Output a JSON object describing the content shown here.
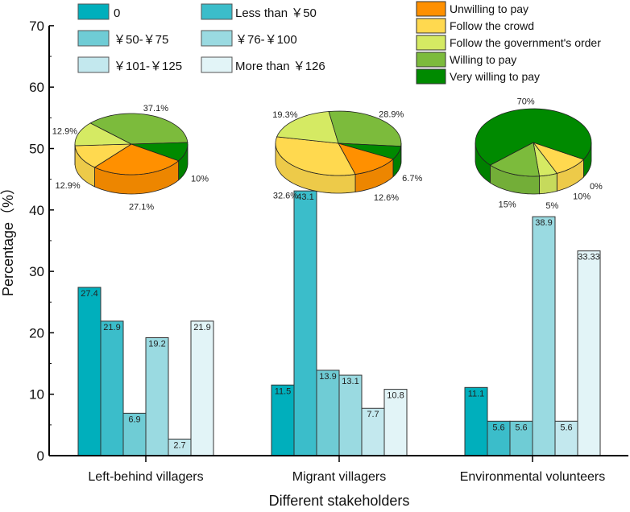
{
  "chart_data": [
    {
      "type": "bar",
      "title": "",
      "xlabel": "Different stakeholders",
      "ylabel": "Percentage（%）",
      "ylim": [
        0,
        70
      ],
      "yticks": [
        "0",
        "10",
        "20",
        "30",
        "40",
        "50",
        "60",
        "70"
      ],
      "categories": [
        "Left-behind villagers",
        "Migrant villagers",
        "Environmental volunteers"
      ],
      "legend_placement": "top-left",
      "series": [
        {
          "name": "0",
          "color": "#00AFBC",
          "values": [
            27.4,
            11.5,
            11.1
          ],
          "labels": [
            "27.4",
            "11.5",
            "11.1"
          ]
        },
        {
          "name": "Less than ￥50",
          "color": "#3BBDCA",
          "values": [
            21.9,
            43.1,
            5.6
          ],
          "labels": [
            "21.9",
            "43.1",
            "5.6"
          ]
        },
        {
          "name": "￥50-￥75",
          "color": "#6FCCD5",
          "values": [
            6.9,
            13.9,
            5.6
          ],
          "labels": [
            "6.9",
            "13.9",
            "5.6"
          ]
        },
        {
          "name": "￥76-￥100",
          "color": "#9ADAE1",
          "values": [
            19.2,
            13.1,
            38.9
          ],
          "labels": [
            "19.2",
            "13.1",
            "38.9"
          ]
        },
        {
          "name": "￥101-￥125",
          "color": "#C3E8EE",
          "values": [
            2.7,
            7.7,
            5.6
          ],
          "labels": [
            "2.7",
            "7.7",
            "5.6"
          ]
        },
        {
          "name": "More than ￥126",
          "color": "#E2F4F7",
          "values": [
            21.9,
            10.8,
            33.33
          ],
          "labels": [
            "21.9",
            "10.8",
            "33.33"
          ]
        }
      ]
    },
    {
      "type": "pie",
      "legend_placement": "top-right",
      "categories": [
        "Unwilling to pay",
        "Follow the crowd",
        "Follow the government's order",
        "Willing to pay",
        "Very willing to pay"
      ],
      "colors": [
        "#FF9000",
        "#FFD94F",
        "#D5EA63",
        "#7CBB3C",
        "#008A00"
      ],
      "pies": [
        {
          "name": "Left-behind villagers",
          "values": [
            27.1,
            12.9,
            12.9,
            37.1,
            10
          ],
          "labels": [
            "27.1%",
            "12.9%",
            "12.9%",
            "37.1%",
            "10%"
          ]
        },
        {
          "name": "Migrant villagers",
          "values": [
            12.6,
            32.6,
            19.3,
            28.9,
            6.7
          ],
          "labels": [
            "12.6%",
            "32.6%",
            "19.3%",
            "28.9%",
            "6.7%"
          ]
        },
        {
          "name": "Environmental volunteers",
          "values": [
            0,
            10,
            5,
            15,
            70
          ],
          "labels": [
            "0%",
            "10%",
            "5%",
            "15%",
            "70%"
          ]
        }
      ]
    }
  ]
}
